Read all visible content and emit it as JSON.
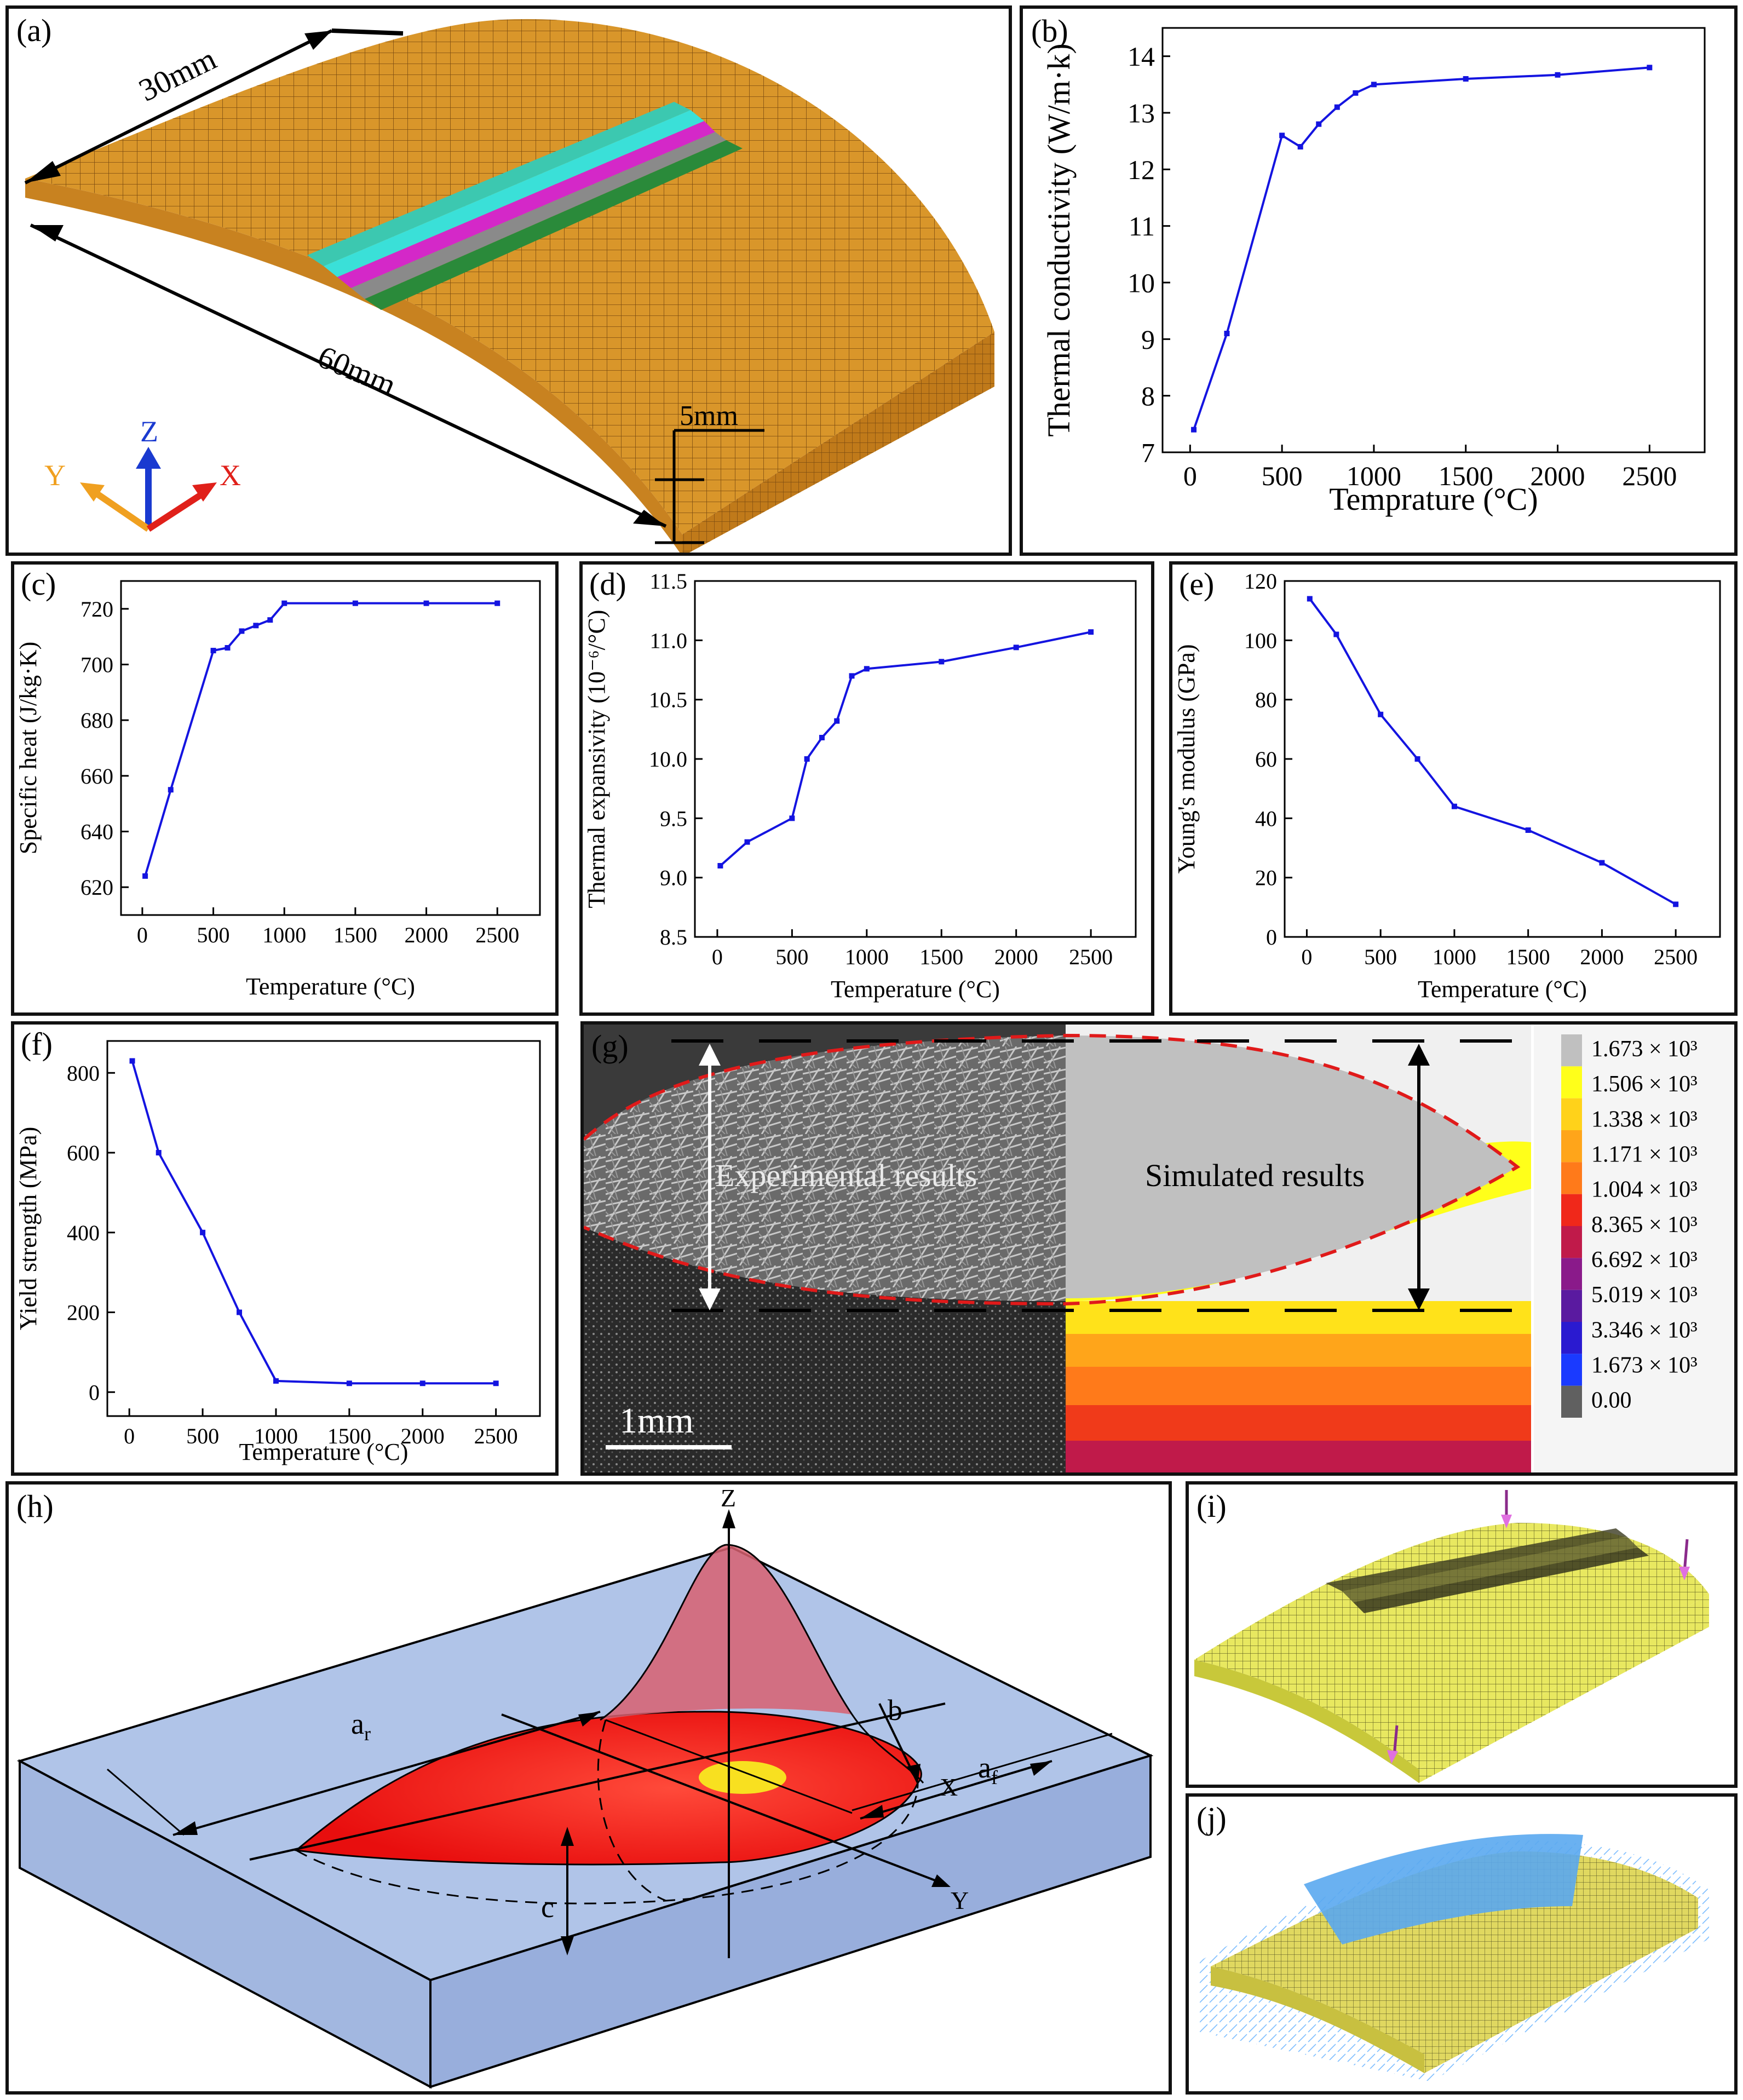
{
  "panels": {
    "a": {
      "label": "(a)",
      "dim_width": "30mm",
      "dim_length": "60mm",
      "dim_thickness": "5mm",
      "axes": {
        "z": "Z",
        "y": "Y",
        "x": "X"
      },
      "colors": {
        "substrate": "#D9962A",
        "mesh": "#7a4a10",
        "x_axis": "#e0201a",
        "y_axis": "#f0a020",
        "z_axis": "#1a3ad0"
      }
    },
    "g": {
      "label": "(g)",
      "experimental": "Experimental results",
      "simulated": "Simulated results",
      "scale": "1mm",
      "legend": [
        "1.673 × 10³",
        "1.506 × 10³",
        "1.338 × 10³",
        "1.171 × 10³",
        "1.004 × 10³",
        "8.365 × 10³",
        "6.692 × 10³",
        "5.019 × 10³",
        "3.346 × 10³",
        "1.673 × 10³",
        "0.00"
      ],
      "legend_colors": [
        "#c0c0c0",
        "#ffff1a",
        "#ffd21a",
        "#ffa51a",
        "#ff7a1a",
        "#f0281a",
        "#c01a4a",
        "#8a1a8a",
        "#5a1aa0",
        "#2a1ad0",
        "#1a3aff",
        "#606060"
      ]
    },
    "h": {
      "label": "(h)",
      "labels": {
        "z": "Z",
        "x": "X",
        "y": "Y",
        "ar": "a",
        "ar_sub": "r",
        "af": "a",
        "af_sub": "f",
        "b": "b",
        "c": "c"
      },
      "colors": {
        "plate_top": "#b0c4e8",
        "plate_side": "#9fb5de",
        "pool": "#f01818",
        "peak": "#d86070",
        "core": "#f8e020"
      }
    },
    "i": {
      "label": "(i)"
    },
    "j": {
      "label": "(j)"
    }
  },
  "chart_data": [
    {
      "id": "b",
      "label": "(b)",
      "type": "line",
      "title": "",
      "xlabel": "Temprature (°C)",
      "ylabel": "Thermal conductivity (W/m·k)",
      "x": [
        20,
        200,
        500,
        600,
        700,
        800,
        900,
        1000,
        1500,
        2000,
        2500
      ],
      "y": [
        7.4,
        9.1,
        12.6,
        12.4,
        12.8,
        13.1,
        13.35,
        13.5,
        13.6,
        13.67,
        13.8
      ],
      "xlim": [
        -150,
        2800
      ],
      "ylim": [
        7,
        14.5
      ],
      "xticks": [
        0,
        500,
        1000,
        1500,
        2000,
        2500
      ],
      "yticks": [
        7,
        8,
        9,
        10,
        11,
        12,
        13,
        14
      ],
      "color": "#1414e0"
    },
    {
      "id": "c",
      "label": "(c)",
      "type": "line",
      "title": "",
      "xlabel": "Temperature (°C)",
      "ylabel": "Specific heat (J/kg·K)",
      "x": [
        20,
        200,
        500,
        600,
        700,
        800,
        900,
        1000,
        1500,
        2000,
        2500
      ],
      "y": [
        624,
        655,
        705,
        706,
        712,
        714,
        716,
        722,
        722,
        722,
        722
      ],
      "xlim": [
        -150,
        2800
      ],
      "ylim": [
        610,
        730
      ],
      "xticks": [
        0,
        500,
        1000,
        1500,
        2000,
        2500
      ],
      "yticks": [
        620,
        640,
        660,
        680,
        700,
        720
      ],
      "color": "#1414e0"
    },
    {
      "id": "d",
      "label": "(d)",
      "type": "line",
      "title": "",
      "xlabel": "Temperature (°C)",
      "ylabel": "Thermal expansivity (10⁻⁶/°C)",
      "x": [
        20,
        200,
        500,
        600,
        700,
        800,
        900,
        1000,
        1500,
        2000,
        2500
      ],
      "y": [
        9.1,
        9.3,
        9.5,
        10.0,
        10.18,
        10.32,
        10.7,
        10.76,
        10.82,
        10.94,
        11.07
      ],
      "xlim": [
        -150,
        2800
      ],
      "ylim": [
        8.5,
        11.5
      ],
      "xticks": [
        0,
        500,
        1000,
        1500,
        2000,
        2500
      ],
      "yticks": [
        8.5,
        9.0,
        9.5,
        10.0,
        10.5,
        11.0,
        11.5
      ],
      "color": "#1414e0"
    },
    {
      "id": "e",
      "label": "(e)",
      "type": "line",
      "title": "",
      "xlabel": "Temperature (°C)",
      "ylabel": "Young's modulus (GPa)",
      "x": [
        20,
        200,
        500,
        750,
        1000,
        1500,
        2000,
        2500
      ],
      "y": [
        114,
        102,
        75,
        60,
        44,
        36,
        25,
        11
      ],
      "xlim": [
        -150,
        2800
      ],
      "ylim": [
        0,
        120
      ],
      "xticks": [
        0,
        500,
        1000,
        1500,
        2000,
        2500
      ],
      "yticks": [
        0,
        20,
        40,
        60,
        80,
        100,
        120
      ],
      "color": "#1414e0"
    },
    {
      "id": "f",
      "label": "(f)",
      "type": "line",
      "title": "",
      "xlabel": "Temperature (°C)",
      "ylabel": "Yield strength (MPa)",
      "x": [
        20,
        200,
        500,
        750,
        1000,
        1500,
        2000,
        2500
      ],
      "y": [
        830,
        600,
        400,
        200,
        28,
        22,
        22,
        22
      ],
      "xlim": [
        -150,
        2800
      ],
      "ylim": [
        -60,
        880
      ],
      "xticks": [
        0,
        500,
        1000,
        1500,
        2000,
        2500
      ],
      "yticks": [
        0,
        200,
        400,
        600,
        800
      ],
      "color": "#1414e0"
    }
  ]
}
